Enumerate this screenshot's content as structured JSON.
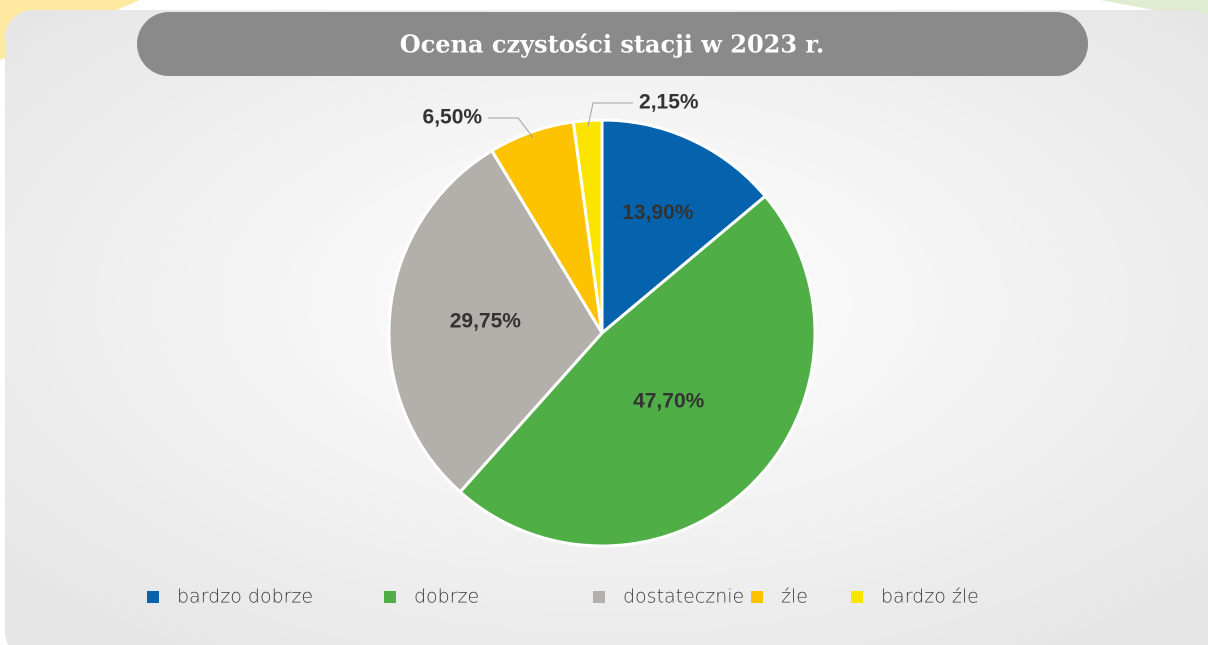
{
  "chart_data": {
    "type": "pie",
    "title": "Ocena czystości stacji w 2023 r.",
    "categories": [
      "bardzo dobrze",
      "dobrze",
      "dostatecznie",
      "źle",
      "bardzo źle"
    ],
    "values": [
      13.9,
      47.7,
      29.75,
      6.5,
      2.15
    ],
    "value_labels": [
      "13,90%",
      "47,70%",
      "29,75%",
      "6,50%",
      "2,15%"
    ],
    "colors": [
      "#0563ad",
      "#50ae47",
      "#b3afaa",
      "#fdc300",
      "#fbe400"
    ],
    "legend": "bottom"
  }
}
